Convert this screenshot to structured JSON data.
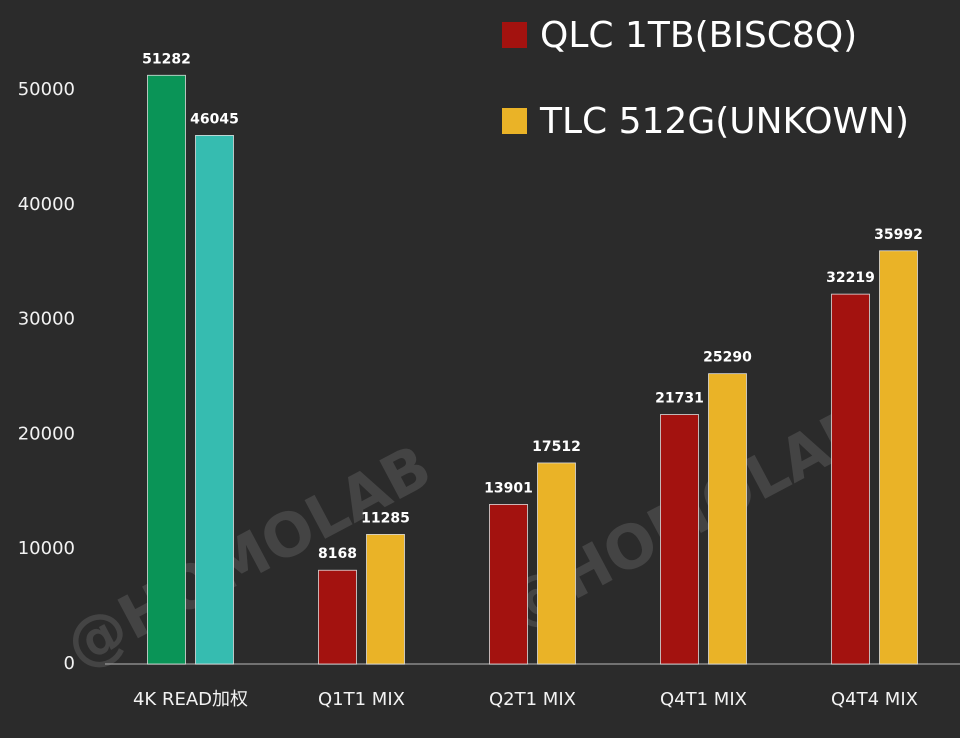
{
  "chart_data": {
    "type": "bar",
    "categories": [
      "4K READ加权",
      "Q1T1 MIX",
      "Q2T1 MIX",
      "Q4T1 MIX",
      "Q4T4 MIX"
    ],
    "series": [
      {
        "name": "QLC 1TB(BISC8Q)",
        "color": "#a3120f",
        "colors": [
          "#0a9457",
          "#a3120f",
          "#a3120f",
          "#a3120f",
          "#a3120f"
        ],
        "values": [
          51282,
          8168,
          13901,
          21731,
          32219
        ]
      },
      {
        "name": "TLC 512G(UNKOWN)",
        "color": "#eab327",
        "colors": [
          "#36bcb0",
          "#eab327",
          "#eab327",
          "#eab327",
          "#eab327"
        ],
        "values": [
          46045,
          11285,
          17512,
          25290,
          35992
        ]
      }
    ],
    "ylim": [
      0,
      55000
    ],
    "yticks": [
      0,
      10000,
      20000,
      30000,
      40000,
      50000
    ],
    "watermark": "@HOMOLAB"
  }
}
